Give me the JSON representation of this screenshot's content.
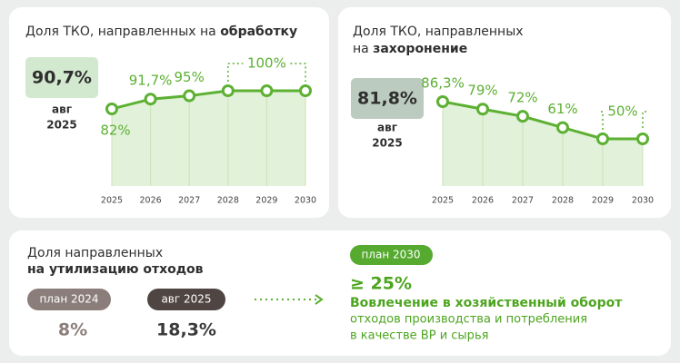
{
  "chart_data": [
    {
      "type": "area",
      "title": [
        "Доля ТКО, направленных на "
      ],
      "title_bold": "обработку",
      "badge": "90,7%",
      "badge_caption": [
        "авг",
        "2025"
      ],
      "categories": [
        "2025",
        "2026",
        "2027",
        "2028",
        "2029",
        "2030"
      ],
      "values": [
        82,
        91.7,
        95,
        100,
        100,
        100
      ],
      "value_labels": [
        "82%",
        "91,7%",
        "95%",
        "100%",
        null,
        null
      ],
      "color": "#5cb032"
    },
    {
      "type": "area",
      "title": [
        "Доля ТКО, направленных",
        "на "
      ],
      "title_bold": "захоронение",
      "badge": "81,8%",
      "badge_caption": [
        "авг",
        "2025"
      ],
      "categories": [
        "2025",
        "2026",
        "2027",
        "2028",
        "2029",
        "2030"
      ],
      "values": [
        86.3,
        79,
        72,
        61,
        50,
        50
      ],
      "value_labels": [
        "86,3%",
        "79%",
        "72%",
        "61%",
        "50%",
        null
      ],
      "color": "#5cb032"
    }
  ],
  "recycling": {
    "title": "Доля направленных",
    "title_bold": "на утилизацию отходов",
    "plan_label": "план 2024",
    "plan_value": "8%",
    "actual_label": "авг 2025",
    "actual_value": "18,3%",
    "target_label": "план 2030",
    "target_value": "≥ 25%",
    "target_title": "Вовлечение в хозяйственный оборот",
    "target_text": [
      "отходов производства и потребления",
      "в качестве ВР и сырья"
    ]
  }
}
